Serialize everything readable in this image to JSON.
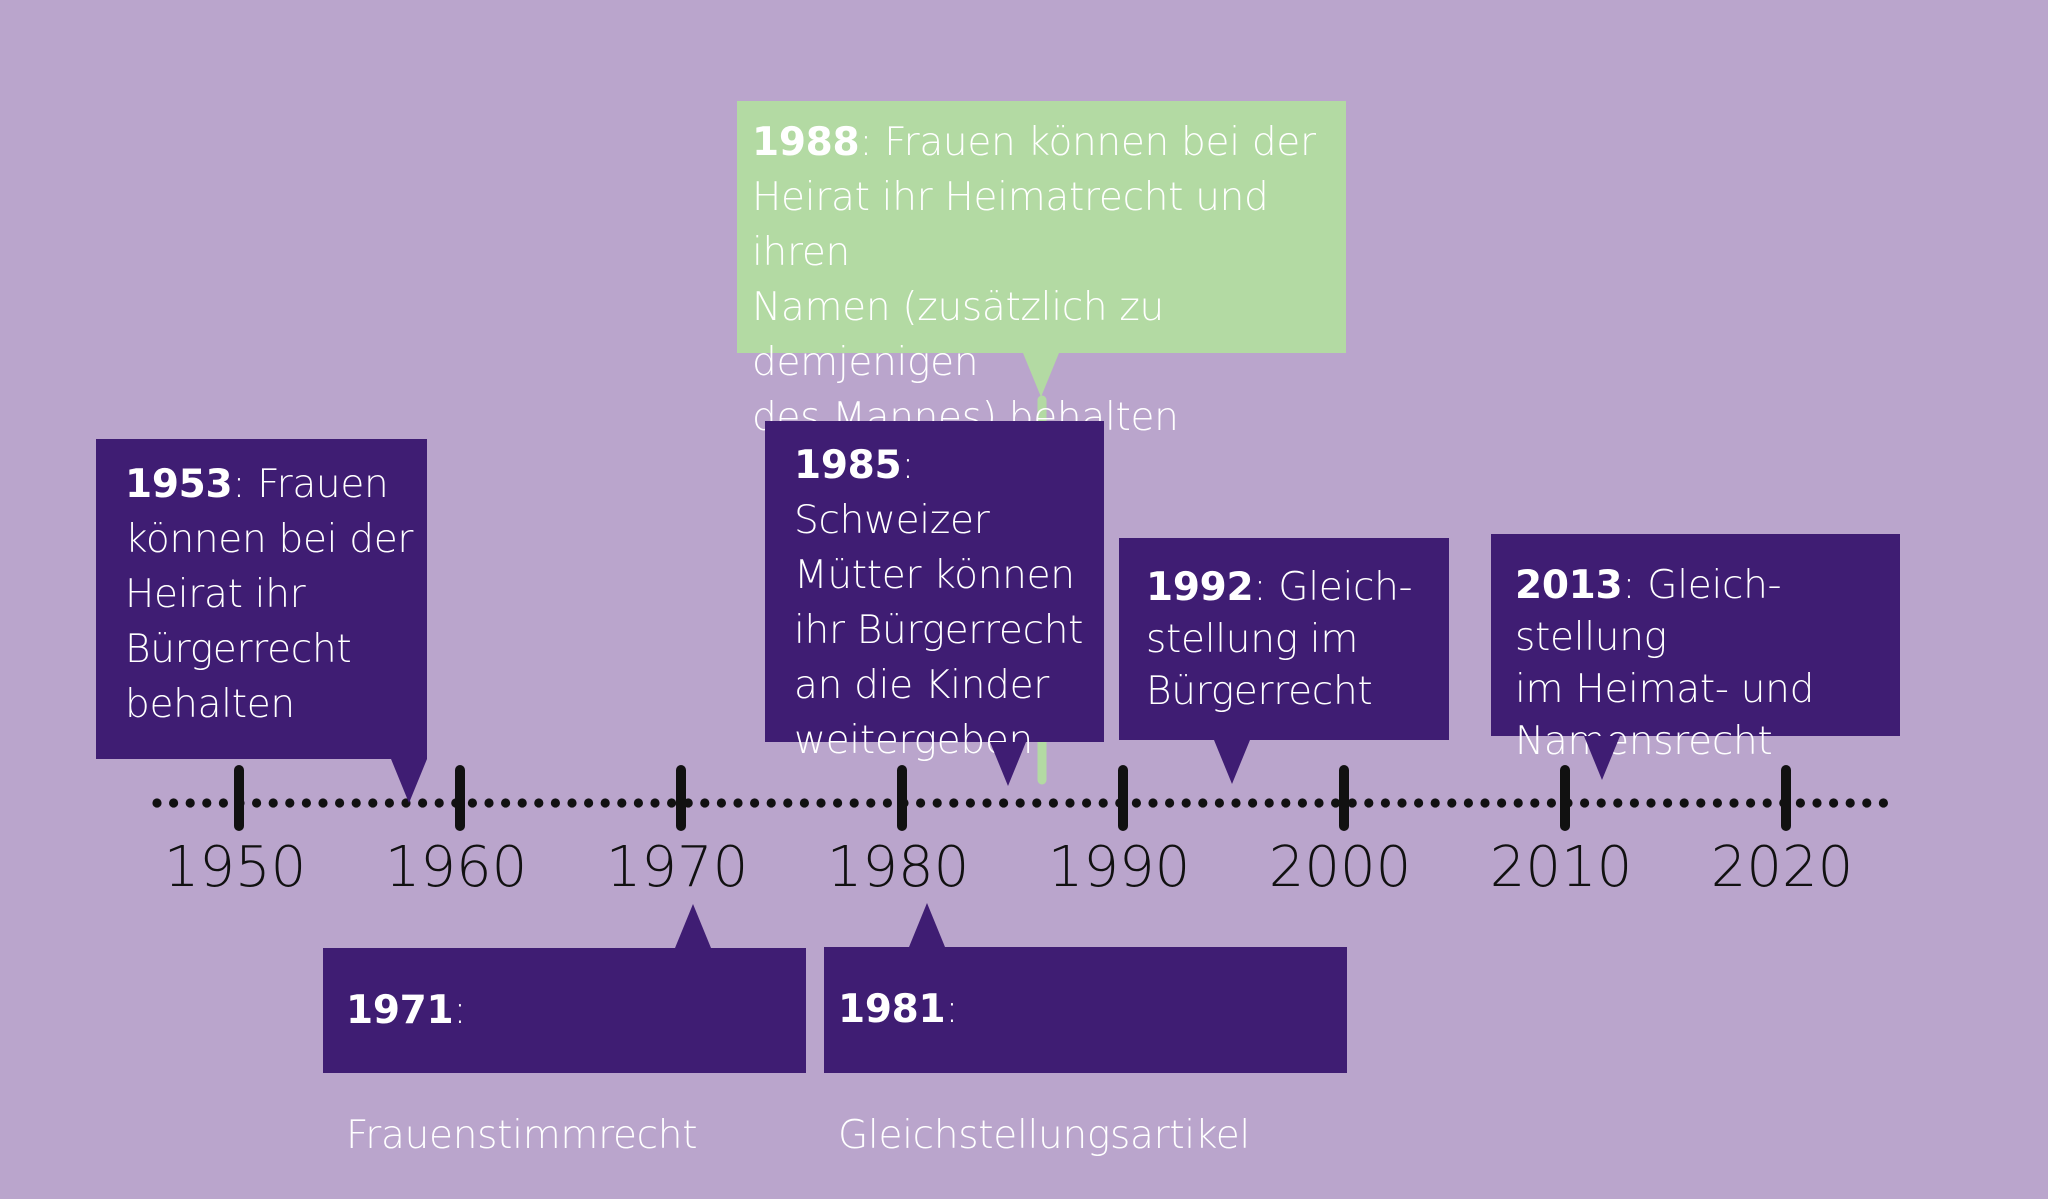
{
  "colors": {
    "background": "#BAA5CC",
    "box_purple": "#3F1D73",
    "box_green": "#B3DAA3",
    "axis": "#111111",
    "text": "#FFFFFF"
  },
  "axis": {
    "ticks": [
      "1950",
      "1960",
      "1970",
      "1980",
      "1990",
      "2000",
      "2010",
      "2020"
    ]
  },
  "events": {
    "e1953": {
      "year": "1953",
      "text": ": Frauen\nkönnen bei der\nHeirat ihr\nBürgerrecht\nbehalten"
    },
    "e1971": {
      "year": "1971",
      "text": ": Frauenstimmrecht"
    },
    "e1981": {
      "year": "1981",
      "text": ": Gleichstellungsartikel"
    },
    "e1985": {
      "year": "1985",
      "text": ": Schweizer\nMütter können\nihr Bürgerrecht\nan die Kinder\nweitergeben"
    },
    "e1988": {
      "year": "1988",
      "text": ": Frauen können bei der\nHeirat ihr Heimatrecht und ihren\nNamen (zusätzlich zu demjenigen\ndes Mannes) behalten"
    },
    "e1992": {
      "year": "1992",
      "text": ": Gleich-\nstellung im\nBürgerrecht"
    },
    "e2013": {
      "year": "2013",
      "text": ": Gleich-stellung\nim Heimat- und\nNamensrecht"
    }
  }
}
